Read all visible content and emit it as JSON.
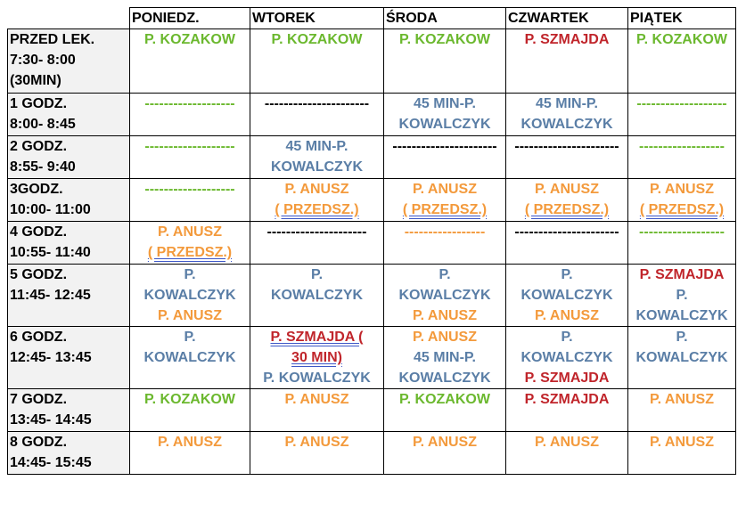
{
  "days": [
    "PONIEDZ.",
    "WTOREK",
    "ŚRODA",
    "CZWARTEK",
    "PIĄTEK"
  ],
  "rows": [
    {
      "label": [
        "PRZED LEK.",
        "7:30- 8:00",
        "(30MIN)"
      ],
      "cells": [
        [
          {
            "t": "P. KOZAKOW",
            "c": "green"
          }
        ],
        [
          {
            "t": "P. KOZAKOW",
            "c": "green"
          }
        ],
        [
          {
            "t": "P. KOZAKOW",
            "c": "green"
          }
        ],
        [
          {
            "t": "P. SZMAJDA",
            "c": "red"
          }
        ],
        [
          {
            "t": "P. KOZAKOW",
            "c": "green"
          }
        ]
      ]
    },
    {
      "label": [
        "1 GODZ.",
        "8:00- 8:45"
      ],
      "cells": [
        [
          {
            "t": "-------------------",
            "c": "green"
          }
        ],
        [
          {
            "t": "----------------------",
            "c": "black"
          }
        ],
        [
          {
            "t": "45 MIN-P.",
            "c": "blue"
          },
          {
            "t": "KOWALCZYK",
            "c": "blue"
          }
        ],
        [
          {
            "t": "45 MIN-P.",
            "c": "blue"
          },
          {
            "t": "KOWALCZYK",
            "c": "blue"
          }
        ],
        [
          {
            "t": "-------------------",
            "c": "green"
          }
        ]
      ]
    },
    {
      "label": [
        "2 GODZ.",
        "8:55- 9:40"
      ],
      "cells": [
        [
          {
            "t": "-------------------",
            "c": "green"
          }
        ],
        [
          {
            "t": "45 MIN-P.",
            "c": "blue"
          },
          {
            "t": "KOWALCZYK",
            "c": "blue"
          }
        ],
        [
          {
            "t": "----------------------",
            "c": "black"
          }
        ],
        [
          {
            "t": "----------------------",
            "c": "black"
          }
        ],
        [
          {
            "t": "------------------",
            "c": "green"
          }
        ]
      ]
    },
    {
      "label": [
        "3GODZ.",
        "10:00- 11:00"
      ],
      "cells": [
        [
          {
            "t": "-------------------",
            "c": "green"
          }
        ],
        [
          {
            "t": "P. ANUSZ",
            "c": "orange"
          },
          {
            "t": "( PRZEDSZ.)",
            "c": "orange",
            "u": true
          }
        ],
        [
          {
            "t": "P. ANUSZ",
            "c": "orange"
          },
          {
            "t": "( PRZEDSZ.)",
            "c": "orange",
            "u": true
          }
        ],
        [
          {
            "t": "P. ANUSZ",
            "c": "orange"
          },
          {
            "t": "( PRZEDSZ.)",
            "c": "orange",
            "u": true
          }
        ],
        [
          {
            "t": "P. ANUSZ",
            "c": "orange"
          },
          {
            "t": "( PRZEDSZ.)",
            "c": "orange",
            "u": true
          }
        ]
      ]
    },
    {
      "label": [
        "4 GODZ.",
        "10:55- 11:40"
      ],
      "cells": [
        [
          {
            "t": "P. ANUSZ",
            "c": "orange"
          },
          {
            "t": "( PRZEDSZ.)",
            "c": "orange",
            "u": true
          }
        ],
        [
          {
            "t": "---------------------",
            "c": "black"
          }
        ],
        [
          {
            "t": "-----------------",
            "c": "orange"
          }
        ],
        [
          {
            "t": "----------------------",
            "c": "black"
          }
        ],
        [
          {
            "t": "------------------",
            "c": "green"
          }
        ]
      ]
    },
    {
      "label": [
        "5 GODZ.",
        "11:45- 12:45"
      ],
      "cells": [
        [
          {
            "t": "P.",
            "c": "blue"
          },
          {
            "t": "KOWALCZYK",
            "c": "blue"
          },
          {
            "t": "P. ANUSZ",
            "c": "orange"
          }
        ],
        [
          {
            "t": "P.",
            "c": "blue"
          },
          {
            "t": "KOWALCZYK",
            "c": "blue"
          }
        ],
        [
          {
            "t": "P.",
            "c": "blue"
          },
          {
            "t": "KOWALCZYK",
            "c": "blue"
          },
          {
            "t": "P. ANUSZ",
            "c": "orange"
          }
        ],
        [
          {
            "t": "P.",
            "c": "blue"
          },
          {
            "t": "KOWALCZYK",
            "c": "blue"
          },
          {
            "t": "P. ANUSZ",
            "c": "orange"
          }
        ],
        [
          {
            "t": "P. SZMAJDA",
            "c": "red"
          },
          {
            "t": "P.",
            "c": "blue"
          },
          {
            "t": "KOWALCZYK",
            "c": "blue"
          }
        ]
      ]
    },
    {
      "label": [
        "6 GODZ.",
        "12:45- 13:45"
      ],
      "cells": [
        [
          {
            "t": "P.",
            "c": "blue"
          },
          {
            "t": "KOWALCZYK",
            "c": "blue"
          }
        ],
        [
          {
            "t": "P. SZMAJDA (",
            "c": "red",
            "u": true
          },
          {
            "t": "30 MIN)",
            "c": "red",
            "u": true
          },
          {
            "t": "P. KOWALCZYK",
            "c": "blue"
          }
        ],
        [
          {
            "t": "P. ANUSZ",
            "c": "orange"
          },
          {
            "t": "45 MIN-P.",
            "c": "blue"
          },
          {
            "t": "KOWALCZYK",
            "c": "blue"
          }
        ],
        [
          {
            "t": "P.",
            "c": "blue"
          },
          {
            "t": "KOWALCZYK",
            "c": "blue"
          },
          {
            "t": "P. SZMAJDA",
            "c": "red"
          }
        ],
        [
          {
            "t": "P.",
            "c": "blue"
          },
          {
            "t": "KOWALCZYK",
            "c": "blue"
          }
        ]
      ]
    },
    {
      "label": [
        "7 GODZ.",
        "13:45- 14:45"
      ],
      "cells": [
        [
          {
            "t": "P. KOZAKOW",
            "c": "green"
          }
        ],
        [
          {
            "t": "P. ANUSZ",
            "c": "orange"
          }
        ],
        [
          {
            "t": "P. KOZAKOW",
            "c": "green"
          }
        ],
        [
          {
            "t": "P. SZMAJDA",
            "c": "red"
          }
        ],
        [
          {
            "t": "P. ANUSZ",
            "c": "orange"
          }
        ]
      ]
    },
    {
      "label": [
        "8 GODZ.",
        "14:45- 15:45"
      ],
      "cells": [
        [
          {
            "t": "P. ANUSZ",
            "c": "orange"
          }
        ],
        [
          {
            "t": "P. ANUSZ",
            "c": "orange"
          }
        ],
        [
          {
            "t": "P. ANUSZ",
            "c": "orange"
          }
        ],
        [
          {
            "t": "P. ANUSZ",
            "c": "orange"
          }
        ],
        [
          {
            "t": "P. ANUSZ",
            "c": "orange"
          }
        ]
      ]
    }
  ],
  "colors": {
    "green": "#6bb82e",
    "blue": "#5a7ea6",
    "red": "#c0252b",
    "orange": "#f39a3c",
    "black": "#000000",
    "row_header_bg": "#f2f2f2"
  }
}
